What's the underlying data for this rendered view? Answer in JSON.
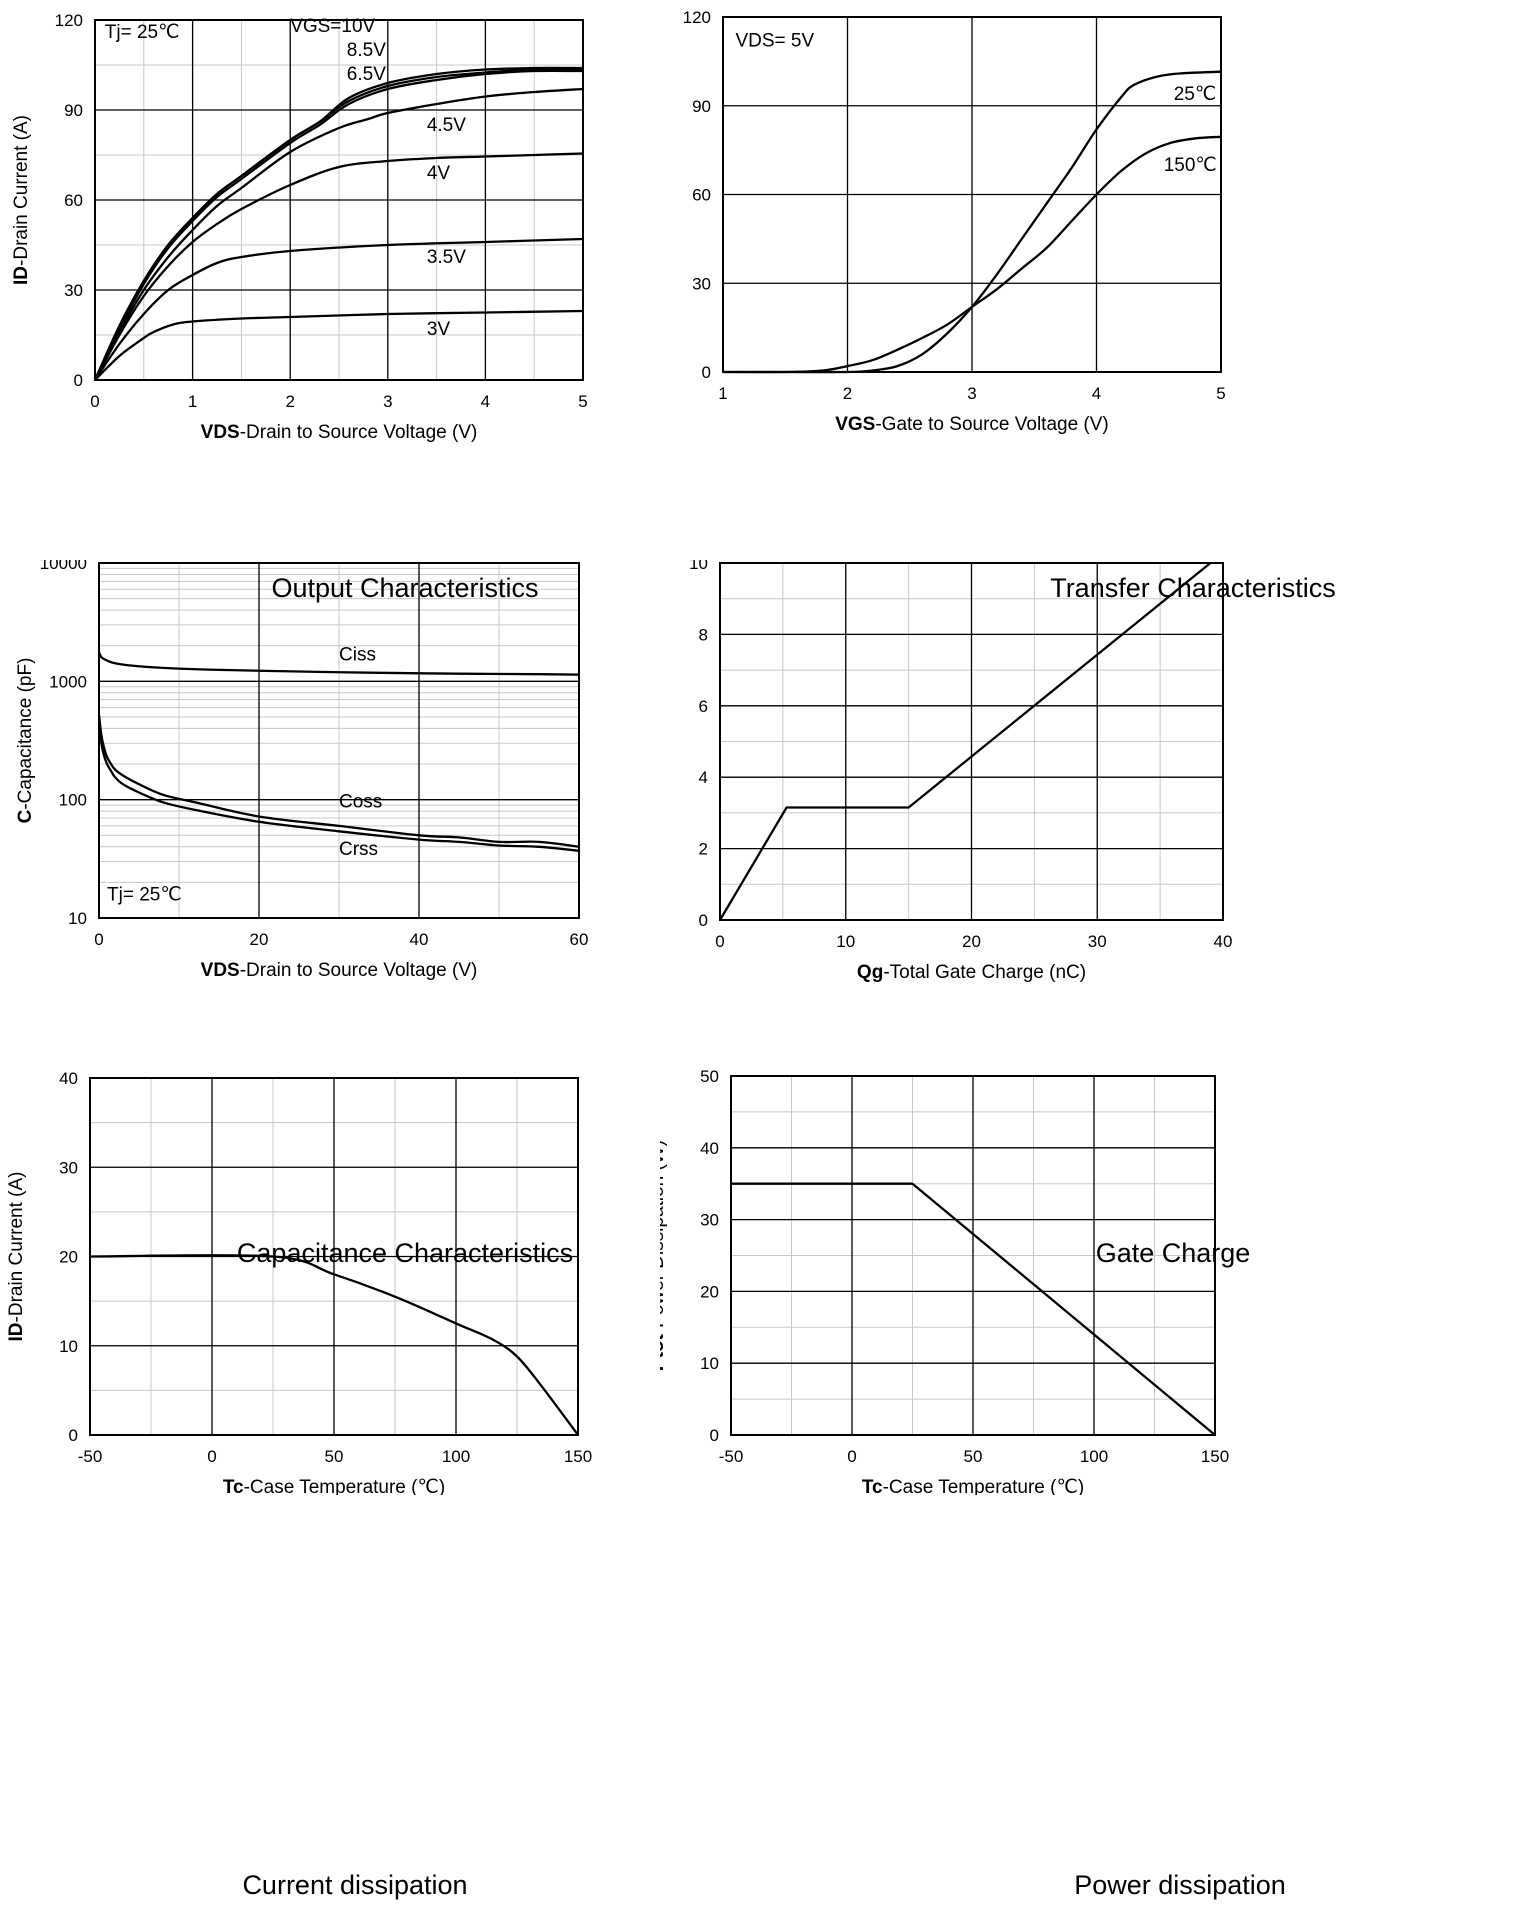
{
  "chart_data": [
    {
      "type": "line",
      "title": "Output Characteristics",
      "xlabel_bold": "VDS",
      "xlabel_rest": "-Drain to Source Voltage (V)",
      "ylabel_bold": "ID",
      "ylabel_rest": "-Drain Current (A)",
      "xlim": [
        0,
        5
      ],
      "ylim": [
        0,
        120
      ],
      "xticks": [
        0,
        1,
        2,
        3,
        4,
        5
      ],
      "yticks": [
        0,
        30,
        60,
        90,
        120
      ],
      "x_minor": 0.5,
      "y_minor": 15,
      "yscale": "linear",
      "annotations": [
        {
          "text": "Tj= 25℃",
          "x": 0.1,
          "y": 114
        },
        {
          "text": "VGS=10V",
          "x": 2.0,
          "y": 116
        },
        {
          "text": "8.5V",
          "x": 2.58,
          "y": 108
        },
        {
          "text": "6.5V",
          "x": 2.58,
          "y": 100
        },
        {
          "text": "4.5V",
          "x": 3.4,
          "y": 83
        },
        {
          "text": "4V",
          "x": 3.4,
          "y": 67
        },
        {
          "text": "3.5V",
          "x": 3.4,
          "y": 39
        },
        {
          "text": "3V",
          "x": 3.4,
          "y": 15
        }
      ],
      "series": [
        {
          "name": "VGS=10V",
          "x": [
            0,
            0.25,
            0.5,
            0.75,
            1,
            1.25,
            1.5,
            2,
            2.3,
            2.6,
            3,
            3.5,
            4,
            4.5,
            5
          ],
          "y": [
            0,
            18,
            33,
            45,
            54,
            62,
            68,
            80,
            86,
            94,
            99,
            102,
            103.5,
            104,
            104
          ]
        },
        {
          "name": "8.5V",
          "x": [
            0,
            0.25,
            0.5,
            0.75,
            1,
            1.25,
            1.5,
            2,
            2.3,
            2.6,
            3,
            3.5,
            4,
            4.5,
            5
          ],
          "y": [
            0,
            18,
            33,
            45,
            54,
            62,
            68,
            80,
            86,
            93,
            98,
            101,
            102.5,
            103.5,
            103.5
          ]
        },
        {
          "name": "6.5V",
          "x": [
            0,
            0.25,
            0.5,
            0.75,
            1,
            1.25,
            1.5,
            2,
            2.3,
            2.6,
            3,
            3.5,
            4,
            4.5,
            5
          ],
          "y": [
            0,
            17,
            32,
            44,
            53,
            61,
            67,
            79,
            85,
            92,
            97,
            100,
            102,
            103,
            103
          ]
        },
        {
          "name": "4.5V",
          "x": [
            0,
            0.25,
            0.5,
            0.75,
            1,
            1.25,
            1.5,
            2,
            2.5,
            2.8,
            3,
            3.5,
            4,
            4.5,
            5
          ],
          "y": [
            0,
            16,
            30,
            41,
            50,
            58,
            64,
            76,
            84,
            87,
            89,
            92,
            94.5,
            96,
            97
          ]
        },
        {
          "name": "4V",
          "x": [
            0,
            0.25,
            0.5,
            0.75,
            1,
            1.25,
            1.5,
            2,
            2.5,
            3,
            3.5,
            4,
            4.5,
            5
          ],
          "y": [
            0,
            15,
            28,
            38,
            46,
            52,
            57,
            65,
            71,
            73,
            74,
            74.5,
            75,
            75.5
          ]
        },
        {
          "name": "3.5V",
          "x": [
            0,
            0.25,
            0.5,
            0.75,
            1,
            1.25,
            1.5,
            2,
            3,
            4,
            5
          ],
          "y": [
            0,
            12,
            22,
            30,
            35,
            39,
            41,
            43,
            45,
            46,
            47
          ]
        },
        {
          "name": "3V",
          "x": [
            0,
            0.25,
            0.5,
            0.6,
            0.8,
            1,
            1.5,
            2,
            3,
            4,
            5
          ],
          "y": [
            0,
            8,
            14,
            16,
            18.5,
            19.5,
            20.5,
            21,
            22,
            22.5,
            23
          ]
        }
      ]
    },
    {
      "type": "line",
      "title": "Transfer Characteristics",
      "xlabel_bold": "VGS",
      "xlabel_rest": "-Gate to Source Voltage (V)",
      "ylabel_bold": "ID",
      "ylabel_rest": "-Drain Current (A)",
      "xlim": [
        1,
        5
      ],
      "ylim": [
        0,
        120
      ],
      "xticks": [
        1,
        2,
        3,
        4,
        5
      ],
      "yticks": [
        0,
        30,
        60,
        90,
        120
      ],
      "x_minor": null,
      "y_minor": null,
      "yscale": "linear",
      "annotations": [
        {
          "text": "VDS= 5V",
          "x": 1.1,
          "y": 110
        },
        {
          "text": "25℃",
          "x": 4.62,
          "y": 92
        },
        {
          "text": "150℃",
          "x": 4.54,
          "y": 68
        }
      ],
      "series": [
        {
          "name": "25℃",
          "x": [
            1,
            1.5,
            2,
            2.2,
            2.4,
            2.6,
            2.8,
            3,
            3.2,
            3.4,
            3.6,
            3.8,
            4,
            4.2,
            4.3,
            4.5,
            4.7,
            5
          ],
          "y": [
            0,
            0,
            0,
            0.5,
            2,
            6,
            13,
            22,
            33,
            45,
            57,
            69,
            82,
            93,
            97,
            100,
            101,
            101.5
          ]
        },
        {
          "name": "150℃",
          "x": [
            1,
            1.5,
            1.8,
            2,
            2.2,
            2.4,
            2.6,
            2.8,
            3,
            3.2,
            3.4,
            3.6,
            3.8,
            4,
            4.2,
            4.4,
            4.6,
            4.8,
            5
          ],
          "y": [
            0,
            0,
            0.5,
            2,
            4,
            7.5,
            11.5,
            16,
            22,
            28,
            35,
            42,
            51,
            60,
            68,
            74,
            77.5,
            79,
            79.5
          ]
        }
      ]
    },
    {
      "type": "line",
      "title": "Capacitance Characteristics",
      "xlabel_bold": "VDS",
      "xlabel_rest": "-Drain to Source Voltage (V)",
      "ylabel_bold": "C",
      "ylabel_rest": "-Capacitance (pF)",
      "xlim": [
        0,
        60
      ],
      "ylim": [
        10,
        10000
      ],
      "xticks": [
        0,
        20,
        40,
        60
      ],
      "yticks": [
        10,
        100,
        1000,
        10000
      ],
      "x_minor": 10,
      "y_minor": null,
      "yscale": "log",
      "annotations": [
        {
          "text": "Ciss",
          "x": 30,
          "y": 1500
        },
        {
          "text": "Coss",
          "x": 30,
          "y": 86
        },
        {
          "text": "Crss",
          "x": 30,
          "y": 34
        },
        {
          "text": "Tj= 25℃",
          "x": 1,
          "y": 14
        }
      ],
      "series": [
        {
          "name": "Ciss",
          "x": [
            0,
            0.3,
            1,
            2,
            4,
            8,
            15,
            25,
            35,
            45,
            55,
            60
          ],
          "y": [
            1750,
            1600,
            1500,
            1420,
            1360,
            1300,
            1250,
            1210,
            1180,
            1160,
            1150,
            1140
          ]
        },
        {
          "name": "Coss",
          "x": [
            0,
            0.3,
            0.6,
            1,
            1.5,
            2,
            3,
            5,
            8,
            12,
            20,
            30,
            40,
            45,
            50,
            55,
            60
          ],
          "y": [
            520,
            350,
            280,
            230,
            200,
            180,
            160,
            135,
            110,
            95,
            72,
            60,
            50,
            48,
            44,
            44,
            40
          ]
        },
        {
          "name": "Crss",
          "x": [
            0,
            0.3,
            0.6,
            1,
            1.5,
            2,
            3,
            5,
            8,
            12,
            20,
            30,
            40,
            45,
            50,
            55,
            60
          ],
          "y": [
            480,
            300,
            240,
            200,
            175,
            155,
            135,
            115,
            95,
            82,
            65,
            54,
            46,
            44,
            41,
            40,
            37
          ]
        }
      ]
    },
    {
      "type": "line",
      "title": "Gate Charge",
      "xlabel_bold": "Qg",
      "xlabel_rest": "-Total Gate Charge (nC)",
      "ylabel_bold": "VGS",
      "ylabel_rest": "-Gate to Source Voltage (V)",
      "xlim": [
        0,
        40
      ],
      "ylim": [
        0,
        10
      ],
      "xticks": [
        0,
        10,
        20,
        30,
        40
      ],
      "yticks": [
        0,
        2,
        4,
        6,
        8,
        10
      ],
      "x_minor": 5,
      "y_minor": 1,
      "yscale": "linear",
      "annotations": [],
      "series": [
        {
          "name": "VGS",
          "x": [
            0,
            5.3,
            15,
            39
          ],
          "y": [
            0,
            3.15,
            3.15,
            10
          ]
        }
      ]
    },
    {
      "type": "line",
      "title": "Current dissipation",
      "xlabel_bold": "Tc",
      "xlabel_rest": "-Case Temperature (℃)",
      "ylabel_bold": "ID",
      "ylabel_rest": "-Drain Current (A)",
      "xlim": [
        -50,
        150
      ],
      "ylim": [
        0,
        40
      ],
      "xticks": [
        -50,
        0,
        50,
        100,
        150
      ],
      "yticks": [
        0,
        10,
        20,
        30,
        40
      ],
      "x_minor": 25,
      "y_minor": 5,
      "yscale": "linear",
      "annotations": [],
      "series": [
        {
          "name": "ID",
          "x": [
            -50,
            25,
            50,
            75,
            100,
            115,
            125,
            135,
            150
          ],
          "y": [
            20,
            20,
            18,
            15.5,
            12.5,
            10.7,
            8.8,
            5.5,
            0
          ]
        }
      ]
    },
    {
      "type": "line",
      "title": "Power dissipation",
      "xlabel_bold": "Tc",
      "xlabel_rest": "-Case Temperature (℃)",
      "ylabel_bold": "Ptot",
      "ylabel_rest": "-Power Dissipation (W)",
      "xlim": [
        -50,
        150
      ],
      "ylim": [
        0,
        50
      ],
      "xticks": [
        -50,
        0,
        50,
        100,
        150
      ],
      "yticks": [
        0,
        10,
        20,
        30,
        40,
        50
      ],
      "x_minor": 25,
      "y_minor": 5,
      "yscale": "linear",
      "annotations": [],
      "series": [
        {
          "name": "Ptot",
          "x": [
            -50,
            25,
            150
          ],
          "y": [
            35,
            35,
            0
          ]
        }
      ]
    }
  ]
}
